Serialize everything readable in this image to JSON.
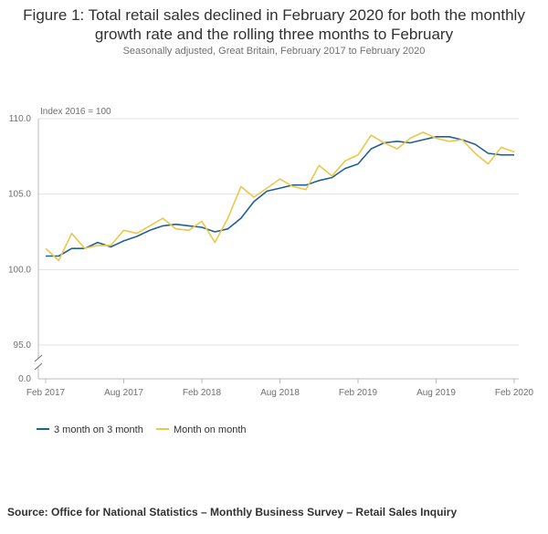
{
  "title_line1": "Figure 1: Total retail sales declined in February 2020 for both the monthly",
  "title_line2": "growth rate and the rolling three months to February",
  "subtitle": "Seasonally adjusted, Great Britain, February 2017 to February 2020",
  "source": "Source: Office for National Statistics – Monthly Business Survey – Retail Sales Inquiry",
  "colors": {
    "three_month": "#206095",
    "month_on_month": "#E9C84A",
    "grid": "#e2e2e3",
    "axis": "#bcbcbd"
  },
  "chart_data": {
    "type": "line",
    "title": "Figure 1: Total retail sales declined in February 2020 for both the monthly growth rate and the rolling three months to February",
    "ylabel": "Index 2016 = 100",
    "xlabel": "",
    "ylim": [
      95,
      110
    ],
    "axis_break": true,
    "y_ticks": [
      "110.0",
      "105.0",
      "100.0",
      "95.0",
      "0.0"
    ],
    "y_tick_values": [
      110,
      105,
      100,
      95
    ],
    "x_tick_labels": [
      "Feb 2017",
      "Aug 2017",
      "Feb 2018",
      "Aug 2018",
      "Feb 2019",
      "Aug 2019",
      "Feb 2020"
    ],
    "x_tick_indices": [
      0,
      6,
      12,
      18,
      24,
      30,
      36
    ],
    "grid": true,
    "legend_position": "bottom-left",
    "categories": [
      "Feb 2017",
      "Mar 2017",
      "Apr 2017",
      "May 2017",
      "Jun 2017",
      "Jul 2017",
      "Aug 2017",
      "Sep 2017",
      "Oct 2017",
      "Nov 2017",
      "Dec 2017",
      "Jan 2018",
      "Feb 2018",
      "Mar 2018",
      "Apr 2018",
      "May 2018",
      "Jun 2018",
      "Jul 2018",
      "Aug 2018",
      "Sep 2018",
      "Oct 2018",
      "Nov 2018",
      "Dec 2018",
      "Jan 2019",
      "Feb 2019",
      "Mar 2019",
      "Apr 2019",
      "May 2019",
      "Jun 2019",
      "Jul 2019",
      "Aug 2019",
      "Sep 2019",
      "Oct 2019",
      "Nov 2019",
      "Dec 2019",
      "Jan 2020",
      "Feb 2020"
    ],
    "series": [
      {
        "name": "3 month on 3 month",
        "color": "#206095",
        "values": [
          100.9,
          100.9,
          101.4,
          101.4,
          101.8,
          101.5,
          101.9,
          102.2,
          102.6,
          102.9,
          103.0,
          102.9,
          102.8,
          102.5,
          102.7,
          103.4,
          104.5,
          105.2,
          105.4,
          105.6,
          105.6,
          105.9,
          106.1,
          106.7,
          107.0,
          108.0,
          108.4,
          108.5,
          108.4,
          108.6,
          108.8,
          108.8,
          108.6,
          108.3,
          107.7,
          107.6,
          107.6
        ]
      },
      {
        "name": "Month on month",
        "color": "#E9C84A",
        "values": [
          101.4,
          100.6,
          102.4,
          101.4,
          101.6,
          101.6,
          102.6,
          102.4,
          102.9,
          103.4,
          102.7,
          102.6,
          103.2,
          101.8,
          103.4,
          105.5,
          104.8,
          105.4,
          106.0,
          105.5,
          105.3,
          106.9,
          106.2,
          107.2,
          107.6,
          108.9,
          108.4,
          108.0,
          108.7,
          109.1,
          108.7,
          108.5,
          108.6,
          107.7,
          107.0,
          108.1,
          107.8
        ]
      }
    ]
  }
}
